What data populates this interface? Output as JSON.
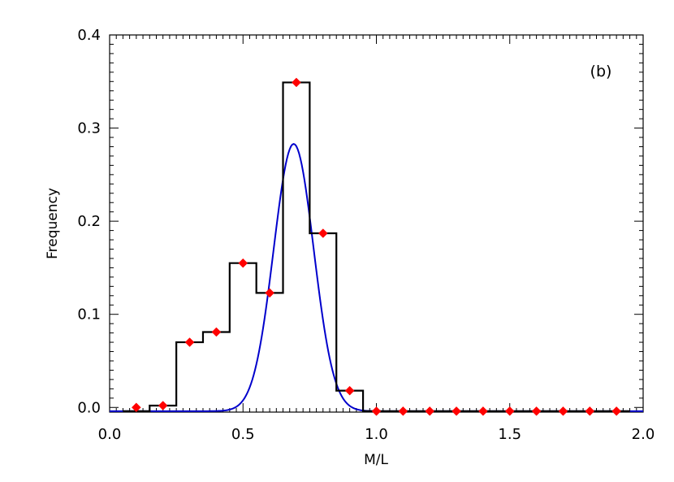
{
  "chart_data": {
    "type": "histogram",
    "panel_label": "(b)",
    "xlabel": "M/L",
    "ylabel": "Frequency",
    "xlim": [
      0.0,
      2.0
    ],
    "ylim": [
      -0.005,
      0.4
    ],
    "x_ticks": [
      0.0,
      0.5,
      1.0,
      1.5,
      2.0
    ],
    "x_tick_labels": [
      "0.0",
      "0.5",
      "1.0",
      "1.5",
      "2.0"
    ],
    "y_ticks": [
      0.0,
      0.1,
      0.2,
      0.3,
      0.4
    ],
    "y_tick_labels": [
      "0.0",
      "0.1",
      "0.2",
      "0.3",
      "0.4"
    ],
    "grid": false,
    "histogram": {
      "color": "#000000",
      "bin_edges": [
        0.05,
        0.15,
        0.25,
        0.35,
        0.45,
        0.55,
        0.65,
        0.75,
        0.85,
        0.95,
        1.05,
        1.15,
        1.25,
        1.35,
        1.45,
        1.55,
        1.65,
        1.75,
        1.85,
        1.95
      ],
      "values": [
        0.0,
        0.002,
        0.07,
        0.081,
        0.155,
        0.123,
        0.349,
        0.187,
        0.018,
        0.0,
        0.0,
        0.0,
        0.0,
        0.0,
        0.0,
        0.0,
        0.0,
        0.0,
        0.0
      ]
    },
    "markers": {
      "color": "#ff0000",
      "shape": "diamond",
      "x": [
        0.1,
        0.2,
        0.3,
        0.4,
        0.5,
        0.6,
        0.7,
        0.8,
        0.9,
        1.0,
        1.1,
        1.2,
        1.3,
        1.4,
        1.5,
        1.6,
        1.7,
        1.8,
        1.9
      ],
      "y": [
        0.0,
        0.002,
        0.07,
        0.081,
        0.155,
        0.123,
        0.349,
        0.187,
        0.018,
        -0.004,
        -0.004,
        -0.004,
        -0.004,
        -0.004,
        -0.004,
        -0.004,
        -0.004,
        -0.004,
        -0.004
      ]
    },
    "gaussian_fit": {
      "color": "#0000cc",
      "amplitude": 0.287,
      "mean": 0.69,
      "sigma": 0.075,
      "baseline": -0.004,
      "x_range": [
        0.0,
        2.0
      ]
    }
  }
}
